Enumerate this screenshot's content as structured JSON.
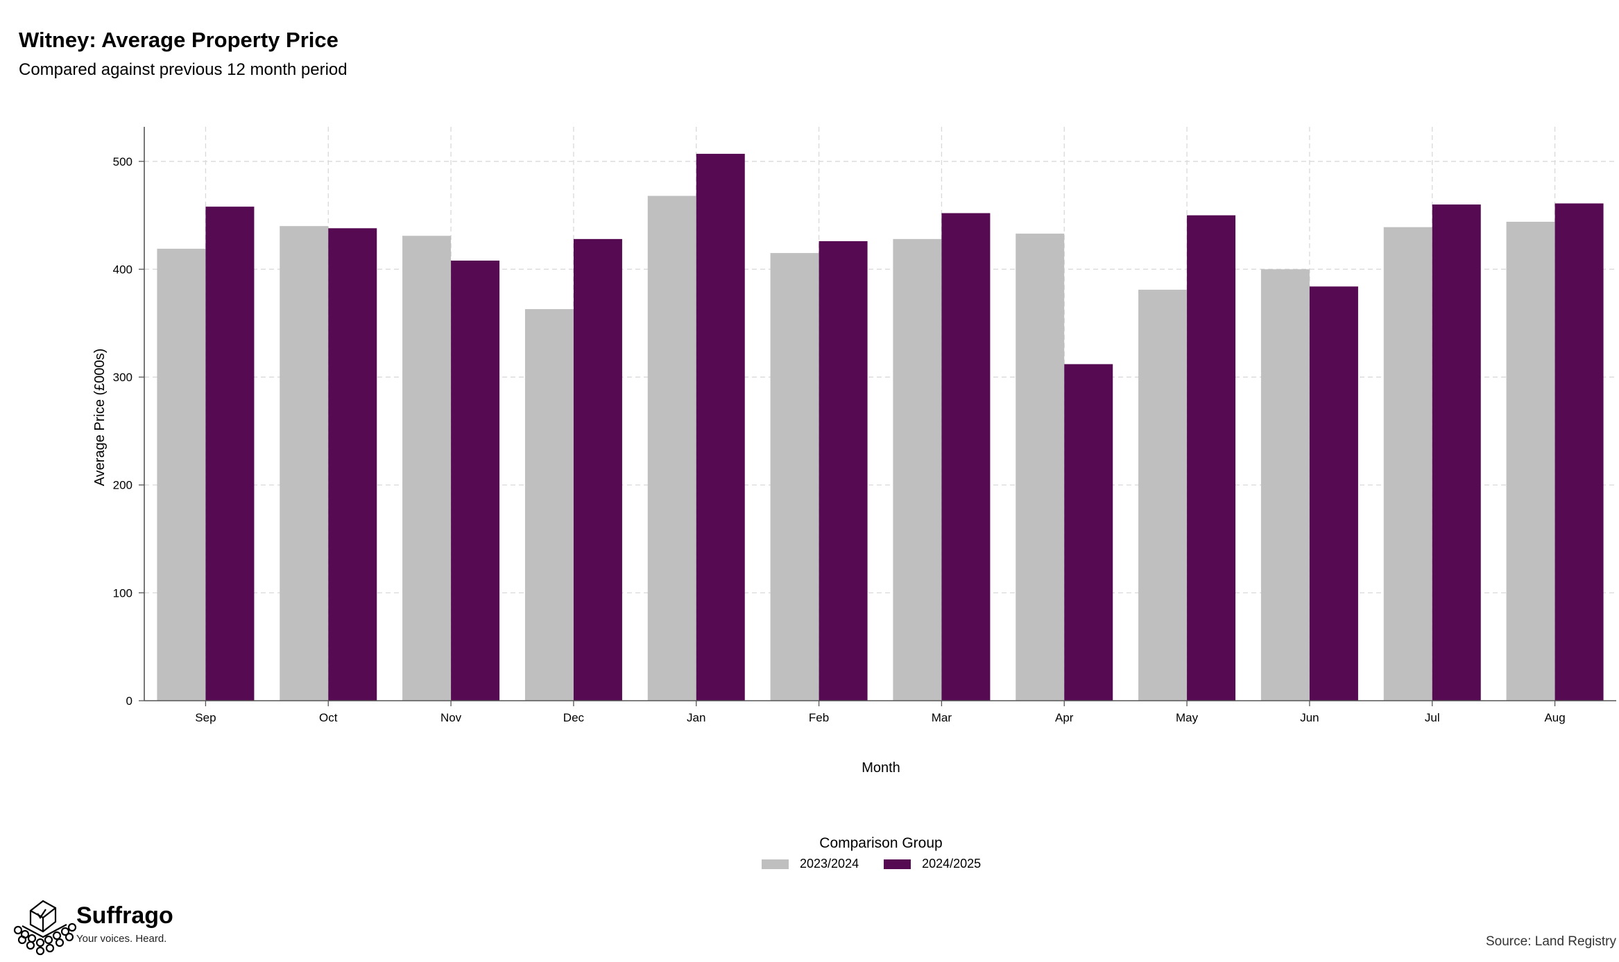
{
  "header": {
    "title": "Witney: Average Property Price",
    "subtitle": "Compared against previous 12 month period"
  },
  "chart_data": {
    "type": "bar",
    "categories": [
      "Sep",
      "Oct",
      "Nov",
      "Dec",
      "Jan",
      "Feb",
      "Mar",
      "Apr",
      "May",
      "Jun",
      "Jul",
      "Aug"
    ],
    "series": [
      {
        "name": "2023/2024",
        "color": "#bfbfbf",
        "values": [
          419,
          440,
          431,
          363,
          468,
          415,
          428,
          433,
          381,
          400,
          439,
          444
        ]
      },
      {
        "name": "2024/2025",
        "color": "#550a52",
        "values": [
          458,
          438,
          408,
          428,
          507,
          426,
          452,
          312,
          450,
          384,
          460,
          461
        ]
      }
    ],
    "xlabel": "Month",
    "ylabel": "Average Price (£000s)",
    "ylim": [
      0,
      532
    ],
    "yticks": [
      0,
      100,
      200,
      300,
      400,
      500
    ],
    "grid": true,
    "legend_title": "Comparison Group",
    "legend_position": "bottom"
  },
  "branding": {
    "name": "Suffrago",
    "tagline": "Your voices. Heard.",
    "source": "Source: Land Registry"
  }
}
